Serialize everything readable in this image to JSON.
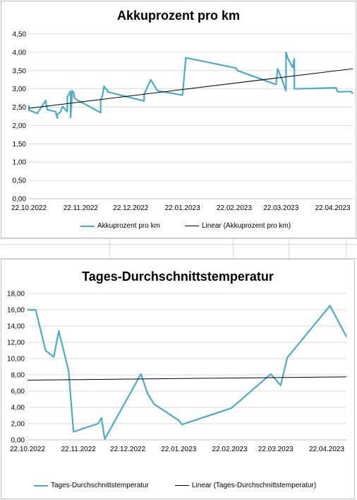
{
  "colors": {
    "series": "#4bacc6",
    "trend": "#000000",
    "grid": "#d9d9d9"
  },
  "chart_data": [
    {
      "type": "line",
      "title": "Akkuprozent pro km",
      "xlabel": "",
      "ylabel": "",
      "ylim": [
        0,
        4.5
      ],
      "yticks": [
        "0,00",
        "0,50",
        "1,00",
        "1,50",
        "2,00",
        "2,50",
        "3,00",
        "3,50",
        "4,00",
        "4,50"
      ],
      "xlim": [
        "2022-10-22",
        "2023-05-04"
      ],
      "xticks": [
        {
          "date": "2022-10-22",
          "label": "22.10.2022"
        },
        {
          "date": "2022-11-22",
          "label": "22.11.2022"
        },
        {
          "date": "2022-12-22",
          "label": "22.12.2022"
        },
        {
          "date": "2023-01-22",
          "label": "22.01.2023"
        },
        {
          "date": "2023-02-22",
          "label": "22.02.2023"
        },
        {
          "date": "2023-03-22",
          "label": "22.03.2023"
        },
        {
          "date": "2023-04-22",
          "label": "22.04.2023"
        }
      ],
      "grid": true,
      "legend_position": "bottom",
      "series": [
        {
          "name": "Akkuprozent pro km",
          "x": [
            "2022-10-22",
            "2022-10-22",
            "2022-10-27",
            "2022-11-01",
            "2022-11-02",
            "2022-11-07",
            "2022-11-08",
            "2022-11-08",
            "2022-11-10",
            "2022-11-11",
            "2022-11-14",
            "2022-11-14",
            "2022-11-16",
            "2022-11-16",
            "2022-11-17",
            "2022-11-18",
            "2022-11-18",
            "2022-11-19",
            "2022-12-04",
            "2022-12-04",
            "2022-12-05",
            "2022-12-06",
            "2022-12-07",
            "2022-12-08",
            "2022-12-08",
            "2022-12-30",
            "2022-12-30",
            "2023-01-03",
            "2023-01-07",
            "2023-01-22",
            "2023-01-24",
            "2023-02-23",
            "2023-02-24",
            "2023-03-19",
            "2023-03-20",
            "2023-03-22",
            "2023-03-25",
            "2023-03-25",
            "2023-03-26",
            "2023-03-29",
            "2023-03-30",
            "2023-03-30",
            "2023-04-24",
            "2023-04-25",
            "2023-05-03",
            "2023-05-04"
          ],
          "values": [
            2.55,
            2.42,
            2.33,
            2.68,
            2.43,
            2.38,
            2.2,
            2.3,
            2.37,
            2.52,
            2.38,
            2.78,
            2.94,
            2.22,
            2.95,
            2.88,
            2.78,
            2.72,
            2.35,
            2.7,
            2.8,
            3.07,
            3.0,
            2.97,
            2.92,
            2.67,
            2.85,
            3.25,
            2.95,
            2.83,
            3.85,
            3.57,
            3.5,
            3.12,
            3.55,
            3.32,
            2.95,
            4.0,
            3.85,
            3.58,
            3.82,
            3.0,
            3.03,
            2.92,
            2.93,
            2.88
          ]
        },
        {
          "name": "Linear (Akkuprozent pro km)",
          "x": [
            "2022-10-22",
            "2023-05-04"
          ],
          "values": [
            2.47,
            3.55
          ]
        }
      ]
    },
    {
      "type": "line",
      "title": "Tages-Durchschnittstemperatur",
      "xlabel": "",
      "ylabel": "",
      "ylim": [
        0,
        18
      ],
      "yticks": [
        "0,00",
        "2,00",
        "4,00",
        "6,00",
        "8,00",
        "10,00",
        "12,00",
        "14,00",
        "16,00",
        "18,00"
      ],
      "xlim": [
        "2022-10-22",
        "2023-05-04"
      ],
      "xticks": [
        {
          "date": "2022-10-22",
          "label": "22.10.2022"
        },
        {
          "date": "2022-11-22",
          "label": "22.11.2022"
        },
        {
          "date": "2022-12-22",
          "label": "22.12.2022"
        },
        {
          "date": "2023-01-22",
          "label": "22.01.2023"
        },
        {
          "date": "2023-02-22",
          "label": "22.02.2023"
        },
        {
          "date": "2023-03-22",
          "label": "22.03.2023"
        },
        {
          "date": "2023-04-22",
          "label": "22.04.2023"
        }
      ],
      "grid": true,
      "legend_position": "bottom",
      "series": [
        {
          "name": "Tages-Durchschnittstemperatur",
          "x": [
            "2022-10-22",
            "2022-10-27",
            "2022-11-02",
            "2022-11-07",
            "2022-11-10",
            "2022-11-16",
            "2022-11-19",
            "2022-12-04",
            "2022-12-06",
            "2022-12-08",
            "2022-12-30",
            "2023-01-03",
            "2023-01-07",
            "2023-01-22",
            "2023-01-24",
            "2023-02-23",
            "2023-03-19",
            "2023-03-25",
            "2023-03-29",
            "2023-04-24",
            "2023-05-04"
          ],
          "values": [
            16.0,
            16.0,
            11.0,
            10.2,
            13.4,
            8.5,
            1.0,
            2.0,
            2.7,
            0.1,
            8.1,
            5.7,
            4.4,
            2.4,
            1.9,
            3.9,
            8.1,
            6.7,
            10.1,
            16.5,
            12.7
          ]
        },
        {
          "name": "Linear (Tages-Durchschnittstemperatur)",
          "x": [
            "2022-10-22",
            "2023-05-04"
          ],
          "values": [
            7.35,
            7.75
          ]
        }
      ]
    }
  ]
}
